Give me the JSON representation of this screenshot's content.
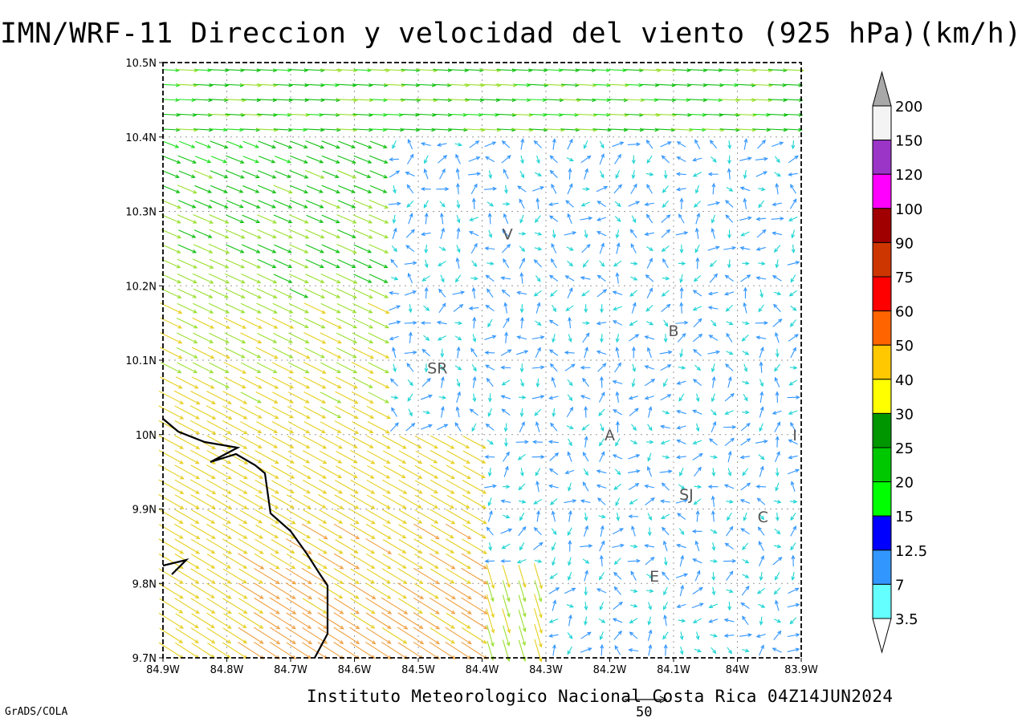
{
  "title": "IMN/WRF-11 Direccion y velocidad del viento (925 hPa)(km/h)",
  "footer": "Instituto Meteorologico Nacional Costa Rica 04Z14JUN2024",
  "credit": "GrADS/COLA",
  "scale_arrow": {
    "value": "50"
  },
  "axes": {
    "x_ticks": [
      "84.9W",
      "84.8W",
      "84.7W",
      "84.6W",
      "84.5W",
      "84.4W",
      "84.3W",
      "84.2W",
      "84.1W",
      "84W",
      "83.9W"
    ],
    "y_ticks": [
      "10.5N",
      "10.4N",
      "10.3N",
      "10.2N",
      "10.1N",
      "10N",
      "9.9N",
      "9.8N",
      "9.7N"
    ],
    "lon_range": [
      -84.9,
      -83.9
    ],
    "lat_range": [
      9.7,
      10.5
    ],
    "grid": "dotted"
  },
  "colorbar": {
    "labels": [
      "200",
      "150",
      "120",
      "100",
      "90",
      "75",
      "60",
      "50",
      "40",
      "30",
      "25",
      "20",
      "15",
      "12.5",
      "7",
      "3.5"
    ],
    "colors": [
      "#f4f4f4",
      "#9b35c8",
      "#ff00ff",
      "#a00000",
      "#cd3600",
      "#ff0000",
      "#ff6400",
      "#ffc800",
      "#ffff00",
      "#009600",
      "#00c800",
      "#00ff00",
      "#0000ff",
      "#3296ff",
      "#64ffff"
    ],
    "cap_top_color": "#a8a8a8",
    "cap_bottom_color": "#ffffff"
  },
  "stations": [
    {
      "label": "V",
      "lon": -84.36,
      "lat": 10.27
    },
    {
      "label": "B",
      "lon": -84.1,
      "lat": 10.14
    },
    {
      "label": "SR",
      "lon": -84.47,
      "lat": 10.09
    },
    {
      "label": "A",
      "lon": -84.2,
      "lat": 10.0
    },
    {
      "label": "I",
      "lon": -83.91,
      "lat": 10.0
    },
    {
      "label": "SJ",
      "lon": -84.08,
      "lat": 9.92
    },
    {
      "label": "C",
      "lon": -83.96,
      "lat": 9.89
    },
    {
      "label": "E",
      "lon": -84.13,
      "lat": 9.81
    }
  ]
}
